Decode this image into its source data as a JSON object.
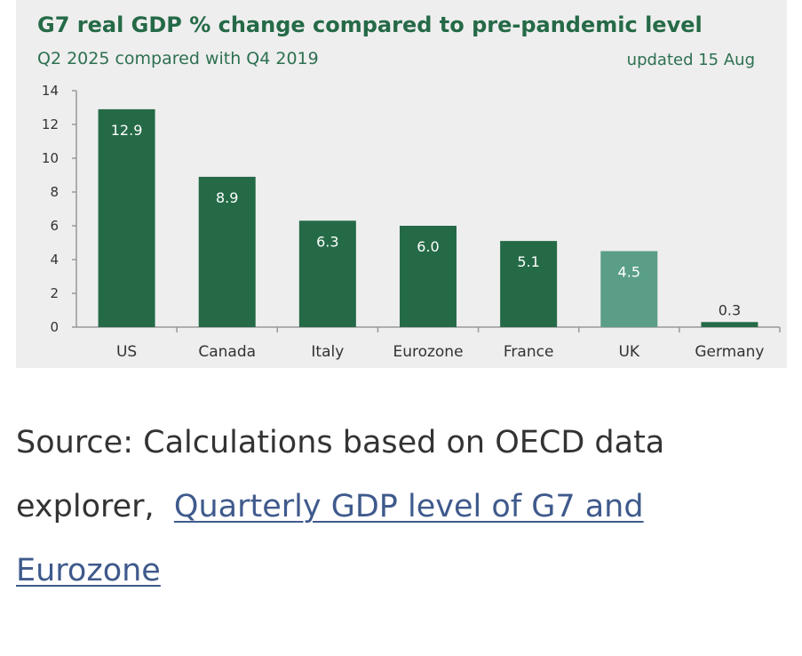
{
  "chart_data": {
    "type": "bar",
    "title": "G7 real GDP % change compared to pre-pandemic level",
    "subtitle": "Q2 2025 compared with Q4 2019",
    "note": "updated 15 Aug",
    "categories": [
      "US",
      "Canada",
      "Italy",
      "Eurozone",
      "France",
      "UK",
      "Germany"
    ],
    "values": [
      12.9,
      8.9,
      6.3,
      6.0,
      5.1,
      4.5,
      0.3
    ],
    "value_labels": [
      "12.9",
      "8.9",
      "6.3",
      "6.0",
      "5.1",
      "4.5",
      "0.3"
    ],
    "highlight_category": "UK",
    "yticks": [
      "0",
      "2",
      "4",
      "6",
      "8",
      "10",
      "12",
      "14"
    ],
    "ylim": [
      0,
      14
    ],
    "xlabel": "",
    "ylabel": "",
    "grid": false,
    "legend": "none",
    "colors": {
      "bar": "#256a47",
      "highlight": "#5a9e88",
      "panel": "#eeeeee",
      "label_inside": "#ffffff",
      "label_outside": "#333333",
      "axis": "#999999",
      "title": "#256a47"
    }
  },
  "source": {
    "prefix": "Source: Calculations based on OECD data explorer,",
    "link_text": "Quarterly GDP level of G7 and Eurozone",
    "colors": {
      "text": "#333333",
      "link": "#3f5a8c"
    }
  }
}
